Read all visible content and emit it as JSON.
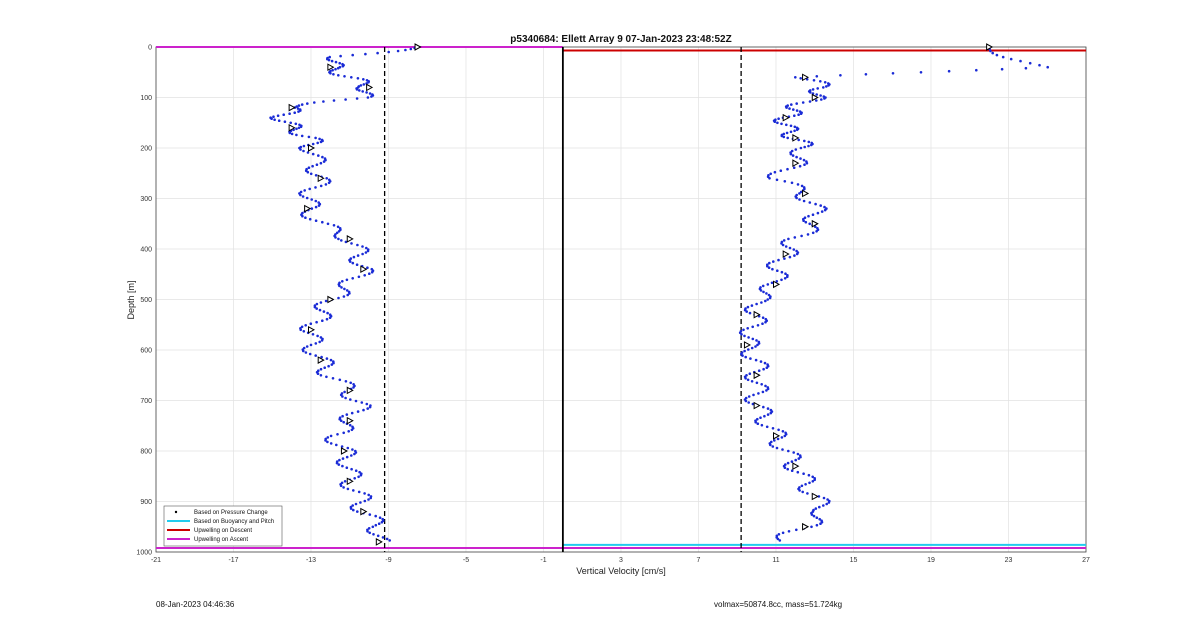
{
  "chart_data": {
    "type": "scatter",
    "title": "p5340684: Ellett Array 9 07-Jan-2023 23:48:52Z",
    "xlabel": "Vertical Velocity [cm/s]",
    "ylabel": "Depth [m]",
    "xlim": [
      -21,
      27
    ],
    "ylim": [
      0,
      1000
    ],
    "y_reversed": true,
    "grid": true,
    "x_ticks": [
      -21,
      -17,
      -13,
      -9,
      -5,
      -1,
      3,
      7,
      11,
      15,
      19,
      23,
      27
    ],
    "y_ticks": [
      0,
      100,
      200,
      300,
      400,
      500,
      600,
      700,
      800,
      900,
      1000
    ],
    "legend_position": "bottom-left",
    "legend": [
      {
        "label": "Based on Pressure Change",
        "color": "#000000",
        "style": "dot"
      },
      {
        "label": "Based on Buoyancy and Pitch",
        "color": "#22ccee",
        "style": "line"
      },
      {
        "label": "Upwelling on Descent",
        "color": "#cc0000",
        "style": "line"
      },
      {
        "label": "Upwelling on Ascent",
        "color": "#cc22cc",
        "style": "line"
      }
    ],
    "reference_lines": [
      {
        "name": "zero",
        "x": 0,
        "style": "solid",
        "color": "#000000"
      },
      {
        "name": "descent-target",
        "x": -9.2,
        "style": "dashed",
        "color": "#000000"
      },
      {
        "name": "ascent-target",
        "x": 9.2,
        "style": "dashed",
        "color": "#000000"
      }
    ],
    "horizontal_lines": [
      {
        "name": "upwelling-ascent-top",
        "y": 0,
        "x_from": -21,
        "x_to": 0,
        "color": "#cc22cc"
      },
      {
        "name": "upwelling-descent-top",
        "y": 7,
        "x_from": 0,
        "x_to": 27,
        "color": "#cc0000"
      },
      {
        "name": "upwelling-ascent-bottom",
        "y": 992,
        "x_from": -21,
        "x_to": 27,
        "color": "#cc22cc"
      },
      {
        "name": "buoyancy-bottom",
        "y": 986,
        "x_from": 0,
        "x_to": 27,
        "color": "#22ccee"
      }
    ],
    "series": [
      {
        "name": "Based on Pressure Change",
        "profile": "descent",
        "depth": [
          0,
          20,
          40,
          60,
          80,
          100,
          120,
          140,
          160,
          180,
          200,
          230,
          260,
          290,
          320,
          350,
          380,
          410,
          440,
          470,
          500,
          530,
          560,
          590,
          620,
          650,
          680,
          710,
          740,
          770,
          800,
          830,
          860,
          890,
          920,
          950,
          980
        ],
        "velocity": [
          -7.5,
          -11.5,
          -12.0,
          -11.0,
          -10.0,
          -10.5,
          -14.0,
          -14.5,
          -14.0,
          -13.0,
          -13.0,
          -12.8,
          -12.5,
          -13.0,
          -13.2,
          -12.5,
          -11.0,
          -10.5,
          -10.3,
          -11.0,
          -12.0,
          -12.5,
          -13.0,
          -13.0,
          -12.5,
          -12.0,
          -11.0,
          -10.5,
          -11.0,
          -11.8,
          -11.3,
          -11.0,
          -11.0,
          -10.5,
          -10.3,
          -9.5,
          -9.5
        ]
      },
      {
        "name": "Based on Pressure Change",
        "profile": "ascent",
        "depth": [
          0,
          40,
          60,
          80,
          100,
          120,
          140,
          160,
          180,
          200,
          230,
          260,
          290,
          320,
          350,
          380,
          410,
          440,
          470,
          500,
          530,
          560,
          590,
          620,
          650,
          680,
          710,
          740,
          770,
          800,
          830,
          860,
          890,
          920,
          950,
          980
        ],
        "velocity": [
          22.0,
          24.5,
          12.5,
          13.5,
          13.0,
          12.0,
          11.5,
          11.5,
          12.0,
          12.5,
          12.0,
          11.0,
          12.5,
          13.0,
          13.0,
          12.0,
          11.5,
          11.0,
          11.0,
          10.0,
          10.0,
          9.8,
          9.5,
          10.0,
          10.0,
          10.0,
          10.0,
          10.5,
          11.0,
          11.5,
          12.0,
          12.5,
          13.0,
          13.5,
          12.5,
          11.0
        ]
      }
    ]
  },
  "footer": {
    "timestamp": "08-Jan-2023 04:46:36",
    "summary": "volmax=50874.8cc, mass=51.724kg"
  }
}
